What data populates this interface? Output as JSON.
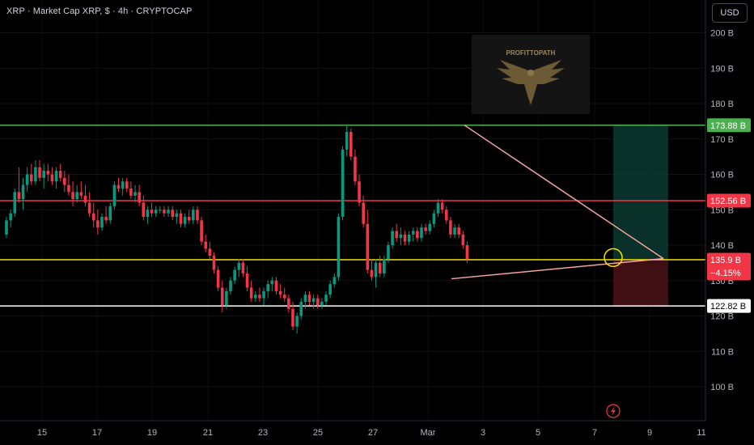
{
  "title": "XRP · Market Cap XRP, $ · 4h · CRYPTOCAP",
  "currency_button": "USD",
  "watermark_text": "PROFITTOPATH",
  "colors": {
    "up": "#089981",
    "down": "#f23645",
    "resistance_green": "#4caf50",
    "resistance_red": "#f23645",
    "support_yellow": "#f5e100",
    "support_white": "#ffffff",
    "trendline": "#f4a6a0",
    "circle": "#f5e100",
    "profit_zone": "#0c3a30",
    "loss_zone": "#4a1218",
    "lightning": "#f23645"
  },
  "icons": {
    "eagle_logo": "eagle-icon",
    "lightning": "lightning-icon"
  },
  "chart_data": {
    "type": "candlestick",
    "title": "XRP · Market Cap XRP, $ · 4h · CRYPTOCAP",
    "y_unit": "B",
    "ylim": [
      92,
      204
    ],
    "y_ticks": [
      "100 B",
      "110 B",
      "120 B",
      "130 B",
      "140 B",
      "150 B",
      "160 B",
      "170 B",
      "180 B",
      "190 B",
      "200 B"
    ],
    "x_ticks": [
      "15",
      "17",
      "19",
      "21",
      "23",
      "25",
      "27",
      "Mar",
      "3",
      "5",
      "7",
      "9",
      "11"
    ],
    "horizontal_levels": [
      {
        "label": "173.88 B",
        "value": 173.88,
        "color": "#4caf50"
      },
      {
        "label": "152.56 B",
        "value": 152.56,
        "color": "#f23645"
      },
      {
        "label": "135.9 B",
        "sub_label": "−4.15%",
        "value": 135.9,
        "color": "#f5e100"
      },
      {
        "label": "122.82 B",
        "value": 122.82,
        "color": "#ffffff"
      }
    ],
    "trendlines": [
      {
        "name": "descending",
        "start": {
          "x": "Mar 2",
          "y": 173.9
        },
        "end": {
          "x": "Mar 9.5",
          "y": 136.2
        }
      },
      {
        "name": "ascending",
        "start": {
          "x": "Mar 1.5",
          "y": 130.5
        },
        "end": {
          "x": "Mar 9.5",
          "y": 136.2
        }
      }
    ],
    "position_tool": {
      "entry": 135.9,
      "target": 173.88,
      "stop": 122.82
    },
    "candles": [
      [
        143,
        148,
        142,
        147
      ],
      [
        147,
        150,
        145,
        149
      ],
      [
        149,
        156,
        148,
        155
      ],
      [
        155,
        162,
        152,
        153
      ],
      [
        153,
        159,
        150,
        157
      ],
      [
        157,
        162,
        155,
        160
      ],
      [
        160,
        163,
        157,
        158
      ],
      [
        158,
        164,
        157,
        162
      ],
      [
        162,
        164,
        158,
        159
      ],
      [
        159,
        163,
        156,
        161
      ],
      [
        161,
        163,
        158,
        160
      ],
      [
        160,
        162,
        157,
        158
      ],
      [
        158,
        162,
        156,
        161
      ],
      [
        161,
        163,
        158,
        159
      ],
      [
        159,
        161,
        155,
        157
      ],
      [
        157,
        160,
        154,
        155
      ],
      [
        155,
        158,
        151,
        153
      ],
      [
        153,
        157,
        152,
        155
      ],
      [
        155,
        158,
        153,
        154
      ],
      [
        154,
        157,
        151,
        152
      ],
      [
        152,
        155,
        148,
        149
      ],
      [
        149,
        152,
        145,
        147
      ],
      [
        147,
        150,
        143,
        145
      ],
      [
        145,
        149,
        144,
        148
      ],
      [
        148,
        151,
        146,
        147
      ],
      [
        147,
        152,
        146,
        151
      ],
      [
        151,
        158,
        150,
        157
      ],
      [
        157,
        159,
        155,
        156
      ],
      [
        156,
        159,
        154,
        158
      ],
      [
        158,
        159,
        155,
        156
      ],
      [
        156,
        158,
        153,
        154
      ],
      [
        154,
        157,
        152,
        155
      ],
      [
        155,
        157,
        151,
        152
      ],
      [
        152,
        154,
        147,
        148
      ],
      [
        148,
        151,
        146,
        150
      ],
      [
        150,
        152,
        148,
        149
      ],
      [
        149,
        151,
        148,
        150
      ],
      [
        150,
        151,
        149,
        150
      ],
      [
        150,
        151,
        148,
        149
      ],
      [
        149,
        151,
        148,
        150
      ],
      [
        150,
        151,
        147,
        148
      ],
      [
        148,
        150,
        146,
        149
      ],
      [
        149,
        150,
        145,
        146
      ],
      [
        146,
        149,
        145,
        148
      ],
      [
        148,
        150,
        146,
        147
      ],
      [
        147,
        151,
        146,
        150
      ],
      [
        150,
        151,
        146,
        147
      ],
      [
        147,
        148,
        140,
        141
      ],
      [
        141,
        143,
        138,
        139
      ],
      [
        139,
        141,
        136,
        137
      ],
      [
        137,
        138,
        132,
        133
      ],
      [
        133,
        134,
        127,
        128
      ],
      [
        128,
        130,
        121,
        123
      ],
      [
        123,
        128,
        122,
        127
      ],
      [
        127,
        131,
        126,
        130
      ],
      [
        130,
        134,
        129,
        133
      ],
      [
        133,
        136,
        131,
        135
      ],
      [
        135,
        136,
        131,
        132
      ],
      [
        132,
        134,
        127,
        128
      ],
      [
        128,
        130,
        124,
        125
      ],
      [
        125,
        127,
        124,
        126
      ],
      [
        126,
        128,
        124,
        125
      ],
      [
        125,
        128,
        123,
        127
      ],
      [
        127,
        130,
        125,
        129
      ],
      [
        129,
        131,
        127,
        130
      ],
      [
        130,
        131,
        126,
        127
      ],
      [
        127,
        129,
        125,
        126
      ],
      [
        126,
        128,
        124,
        125
      ],
      [
        125,
        126,
        121,
        122
      ],
      [
        122,
        124,
        116,
        117
      ],
      [
        117,
        121,
        115,
        120
      ],
      [
        120,
        125,
        119,
        124
      ],
      [
        124,
        127,
        122,
        126
      ],
      [
        126,
        127,
        123,
        124
      ],
      [
        124,
        126,
        122,
        125
      ],
      [
        125,
        126,
        122,
        123
      ],
      [
        123,
        125,
        122,
        124
      ],
      [
        124,
        127,
        123,
        126
      ],
      [
        126,
        130,
        125,
        129
      ],
      [
        129,
        132,
        128,
        131
      ],
      [
        131,
        149,
        130,
        148
      ],
      [
        148,
        168,
        147,
        167
      ],
      [
        167,
        174,
        165,
        172
      ],
      [
        172,
        173,
        164,
        165
      ],
      [
        165,
        167,
        157,
        158
      ],
      [
        158,
        160,
        151,
        152
      ],
      [
        152,
        154,
        145,
        146
      ],
      [
        146,
        150,
        132,
        133
      ],
      [
        133,
        136,
        130,
        131
      ],
      [
        131,
        136,
        128,
        135
      ],
      [
        135,
        137,
        131,
        132
      ],
      [
        132,
        137,
        131,
        136
      ],
      [
        136,
        141,
        135,
        140
      ],
      [
        140,
        145,
        139,
        144
      ],
      [
        144,
        146,
        141,
        142
      ],
      [
        142,
        145,
        140,
        143
      ],
      [
        143,
        144,
        140,
        141
      ],
      [
        141,
        144,
        140,
        143
      ],
      [
        143,
        145,
        141,
        144
      ],
      [
        144,
        145,
        141,
        142
      ],
      [
        142,
        146,
        141,
        145
      ],
      [
        145,
        146,
        143,
        144
      ],
      [
        144,
        147,
        143,
        146
      ],
      [
        146,
        150,
        145,
        149
      ],
      [
        149,
        153,
        148,
        152
      ],
      [
        152,
        153,
        149,
        150
      ],
      [
        150,
        151,
        146,
        147
      ],
      [
        147,
        148,
        142,
        143
      ],
      [
        143,
        146,
        142,
        145
      ],
      [
        145,
        146,
        142,
        143
      ],
      [
        143,
        144,
        139,
        140
      ],
      [
        140,
        141,
        135,
        136
      ]
    ]
  }
}
